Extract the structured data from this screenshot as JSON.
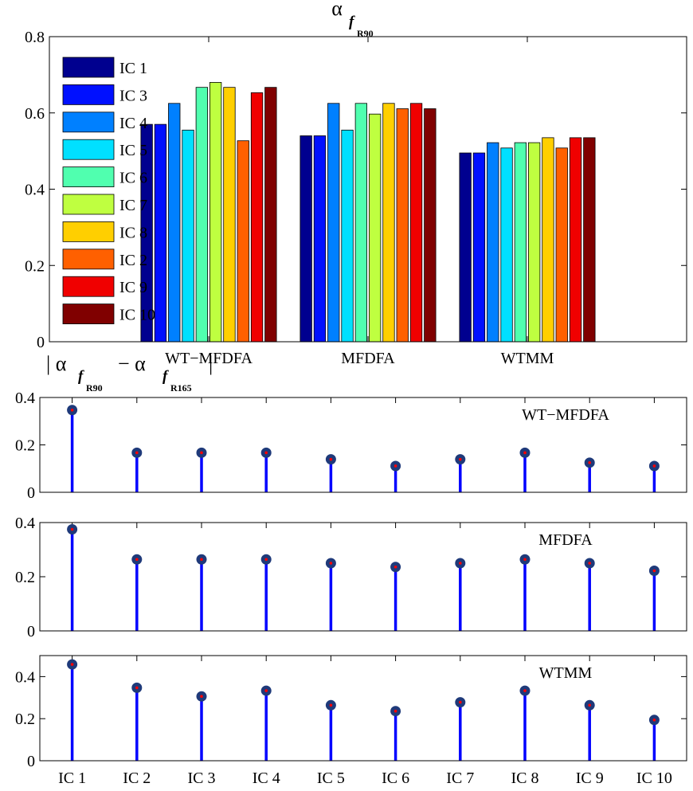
{
  "chart_data": [
    {
      "type": "bar",
      "title": "α",
      "title_sub": "f",
      "title_subsub": "R90",
      "categories": [
        "WT−MFDFA",
        "MFDFA",
        "WTMM"
      ],
      "ylim": [
        0,
        0.8
      ],
      "yticks": [
        0,
        0.2,
        0.4,
        0.6,
        0.8
      ],
      "ytick_labels": [
        "0",
        "0.2",
        "0.4",
        "0.6",
        "0.8"
      ],
      "legend_position": "top-left",
      "series": [
        {
          "name": "IC 1",
          "color": "#00008f",
          "values": [
            0.57,
            0.54,
            0.495
          ]
        },
        {
          "name": "IC 3",
          "color": "#0010ff",
          "values": [
            0.57,
            0.54,
            0.495
          ]
        },
        {
          "name": "IC 4",
          "color": "#0080ff",
          "values": [
            0.625,
            0.625,
            0.522
          ]
        },
        {
          "name": "IC 5",
          "color": "#00e0ff",
          "values": [
            0.555,
            0.555,
            0.508
          ]
        },
        {
          "name": "IC 6",
          "color": "#50ffaf",
          "values": [
            0.667,
            0.625,
            0.522
          ]
        },
        {
          "name": "IC 7",
          "color": "#bfff40",
          "values": [
            0.68,
            0.597,
            0.522
          ]
        },
        {
          "name": "IC 8",
          "color": "#ffcf00",
          "values": [
            0.667,
            0.625,
            0.535
          ]
        },
        {
          "name": "IC 2",
          "color": "#ff6000",
          "values": [
            0.527,
            0.611,
            0.508
          ]
        },
        {
          "name": "IC 9",
          "color": "#f00000",
          "values": [
            0.653,
            0.625,
            0.535
          ]
        },
        {
          "name": "IC 10",
          "color": "#800000",
          "values": [
            0.667,
            0.611,
            0.535
          ]
        }
      ]
    },
    {
      "type": "stem",
      "panel_label": "WT−MFDFA",
      "ylabel_prefix": "| α",
      "ylabel_sub1": "f",
      "ylabel_subsub1": "R90",
      "ylabel_minus": "− α",
      "ylabel_sub2": "f",
      "ylabel_subsub2": "R165",
      "ylabel_suffix": "|",
      "ylim": [
        0,
        0.4
      ],
      "yticks": [
        0,
        0.2,
        0.4
      ],
      "ytick_labels": [
        "0",
        "0.2",
        "0.4"
      ],
      "x": [
        "IC 1",
        "IC 2",
        "IC 3",
        "IC 4",
        "IC 5",
        "IC 6",
        "IC 7",
        "IC 8",
        "IC 9",
        "IC 10"
      ],
      "values": [
        0.347,
        0.167,
        0.167,
        0.167,
        0.139,
        0.111,
        0.139,
        0.167,
        0.125,
        0.111
      ]
    },
    {
      "type": "stem",
      "panel_label": "MFDFA",
      "ylim": [
        0,
        0.4
      ],
      "yticks": [
        0,
        0.2,
        0.4
      ],
      "ytick_labels": [
        "0",
        "0.2",
        "0.4"
      ],
      "x": [
        "IC 1",
        "IC 2",
        "IC 3",
        "IC 4",
        "IC 5",
        "IC 6",
        "IC 7",
        "IC 8",
        "IC 9",
        "IC 10"
      ],
      "values": [
        0.375,
        0.264,
        0.264,
        0.264,
        0.25,
        0.236,
        0.25,
        0.264,
        0.25,
        0.222
      ]
    },
    {
      "type": "stem",
      "panel_label": "WTMM",
      "ylim": [
        0,
        0.5
      ],
      "yticks": [
        0,
        0.2,
        0.4
      ],
      "ytick_labels": [
        "0",
        "0.2",
        "0.4"
      ],
      "x": [
        "IC 1",
        "IC 2",
        "IC 3",
        "IC 4",
        "IC 5",
        "IC 6",
        "IC 7",
        "IC 8",
        "IC 9",
        "IC 10"
      ],
      "xtick_labels": [
        "IC 1",
        "IC 2",
        "IC 3",
        "IC 4",
        "IC 5",
        "IC 6",
        "IC 7",
        "IC 8",
        "IC 9",
        "IC 10"
      ],
      "values": [
        0.458,
        0.347,
        0.306,
        0.333,
        0.264,
        0.236,
        0.278,
        0.333,
        0.264,
        0.194
      ]
    }
  ],
  "colors": {
    "stem": "#0000ff",
    "marker_edge": "#1f3a7a",
    "marker_dot": "#ff0000"
  }
}
